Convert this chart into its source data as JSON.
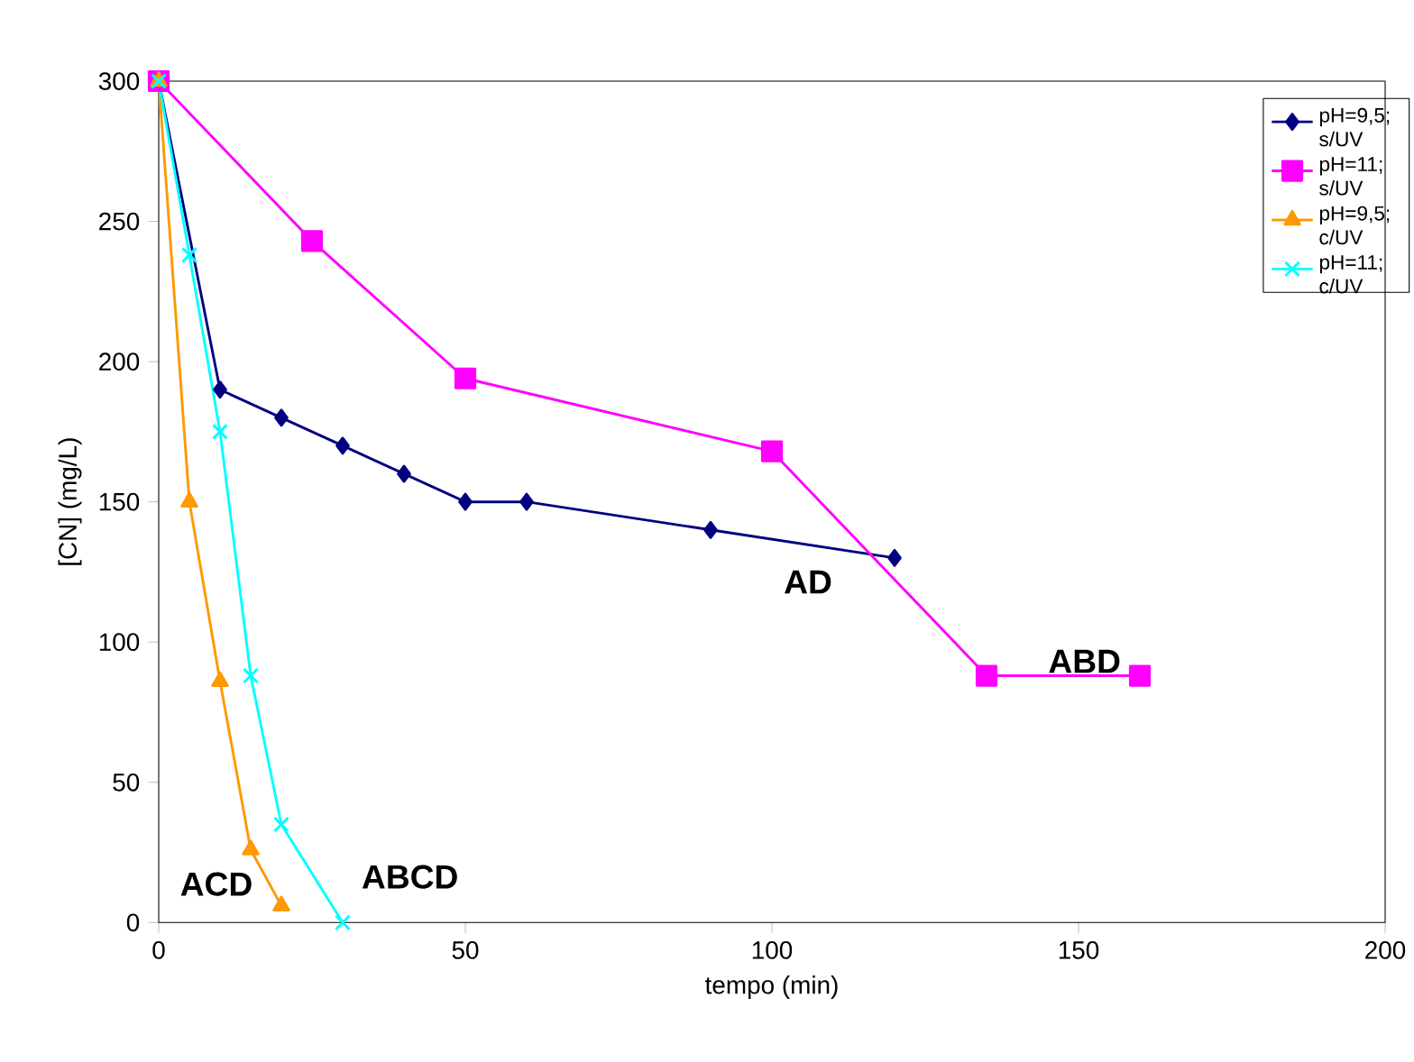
{
  "chart_data": {
    "type": "line",
    "xlabel": "tempo (min)",
    "ylabel": "[CN] (mg/L)",
    "xlim": [
      0,
      200
    ],
    "xticks": [
      0,
      50,
      100,
      150,
      200
    ],
    "ylim": [
      0,
      300
    ],
    "yticks": [
      0,
      50,
      100,
      150,
      200,
      250,
      300
    ],
    "legend": "top right",
    "grid": false,
    "series": [
      {
        "name": "pH=9,5; s/UV",
        "color": "#000080",
        "marker": "diamond",
        "x": [
          0,
          10,
          20,
          30,
          40,
          50,
          60,
          90,
          120
        ],
        "values": [
          300,
          190,
          180,
          170,
          160,
          150,
          150,
          140,
          130
        ]
      },
      {
        "name": "pH=11; s/UV",
        "color": "#ff00ff",
        "marker": "square",
        "x": [
          0,
          25,
          50,
          100,
          135,
          160
        ],
        "values": [
          300,
          243,
          194,
          168,
          88,
          88
        ]
      },
      {
        "name": "pH=9,5; c/UV",
        "color": "#ff9900",
        "marker": "triangle",
        "x": [
          0,
          5,
          10,
          15,
          20
        ],
        "values": [
          300,
          150,
          86,
          26,
          6
        ]
      },
      {
        "name": "pH=11; c/UV",
        "color": "#00ffff",
        "marker": "cross",
        "x": [
          0,
          5,
          10,
          15,
          20,
          30
        ],
        "values": [
          300,
          238,
          175,
          88,
          35,
          0
        ]
      }
    ],
    "annotations": [
      "AD",
      "ABD",
      "ACD",
      "ABCD"
    ]
  }
}
